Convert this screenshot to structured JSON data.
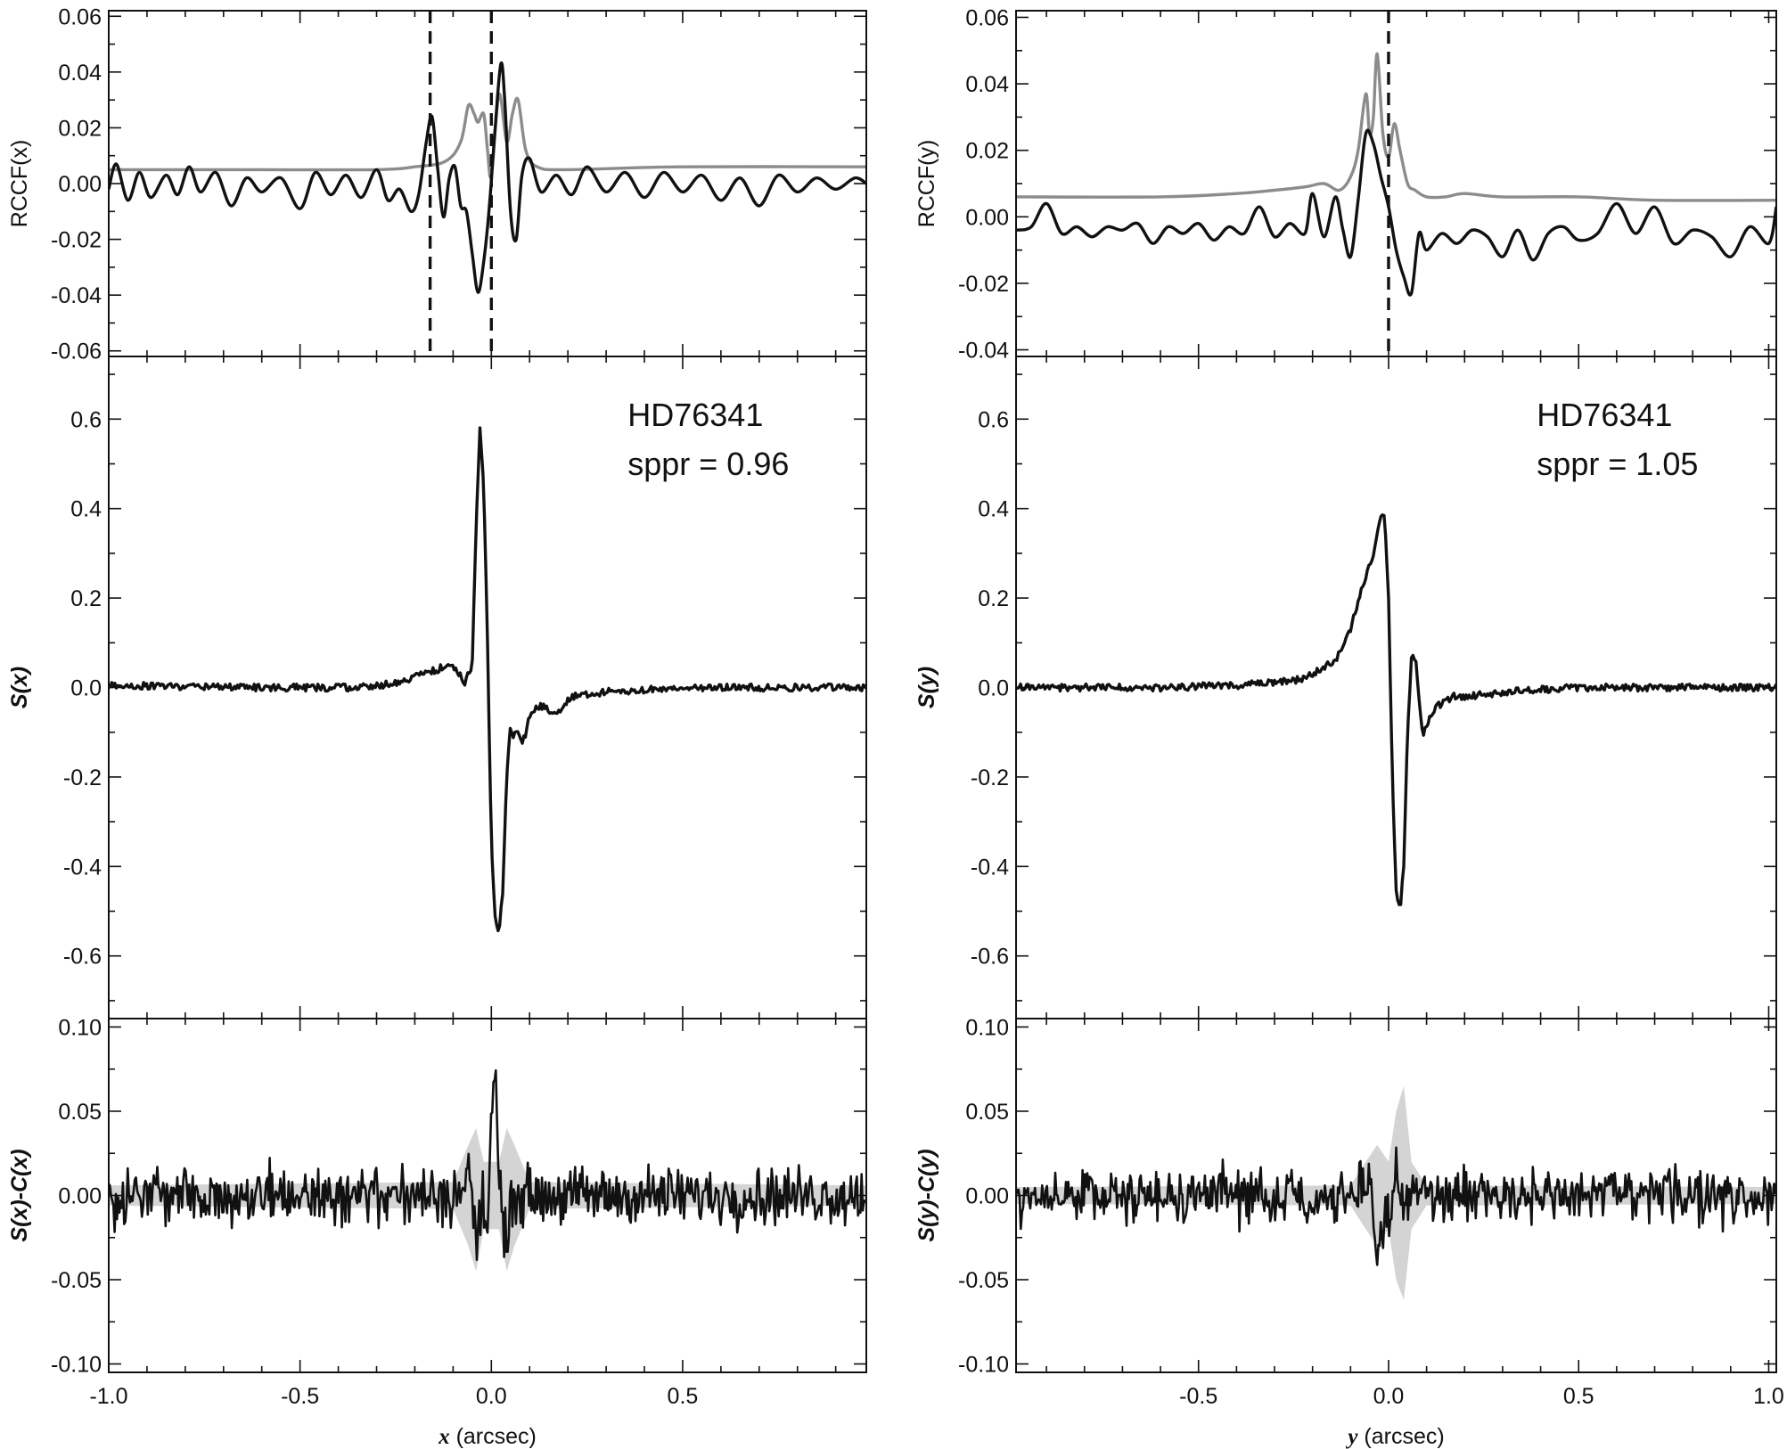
{
  "chart_data": [
    {
      "id": "left",
      "type": "line",
      "xlim": [
        -1.0,
        0.98
      ],
      "xticks": [
        -1.0,
        -0.5,
        0.0,
        0.5
      ],
      "xtick_labels": [
        "-1.0",
        "-0.5",
        "0.0",
        "0.5"
      ],
      "xlabel_var": "x",
      "xlabel_unit": " (arcsec)",
      "panels": [
        {
          "id": "rccf",
          "ylabel": "RCCF(x)",
          "ylim": [
            -0.062,
            0.062
          ],
          "yticks": [
            -0.06,
            -0.04,
            -0.02,
            0.0,
            0.02,
            0.04,
            0.06
          ],
          "ytick_labels": [
            "-0.06",
            "-0.04",
            "-0.02",
            "0.00",
            "0.02",
            "0.04",
            "0.06"
          ],
          "vlines": [
            -0.16,
            0.0
          ],
          "series": [
            {
              "color": "#8c8c8c",
              "x": [
                -1.0,
                -0.6,
                -0.3,
                -0.2,
                -0.12,
                -0.08,
                -0.06,
                -0.045,
                -0.035,
                -0.02,
                -0.01,
                0.0,
                0.02,
                0.04,
                0.055,
                0.07,
                0.09,
                0.12,
                0.2,
                0.5,
                0.98
              ],
              "y": [
                0.005,
                0.005,
                0.005,
                0.006,
                0.008,
                0.015,
                0.028,
                0.025,
                0.022,
                0.025,
                0.012,
                0.003,
                0.032,
                0.015,
                0.025,
                0.03,
                0.012,
                0.006,
                0.005,
                0.006,
                0.006
              ]
            },
            {
              "color": "#111111",
              "x": [
                -1.0,
                -0.98,
                -0.95,
                -0.92,
                -0.89,
                -0.85,
                -0.82,
                -0.79,
                -0.76,
                -0.72,
                -0.68,
                -0.64,
                -0.6,
                -0.55,
                -0.5,
                -0.46,
                -0.42,
                -0.38,
                -0.34,
                -0.3,
                -0.27,
                -0.24,
                -0.21,
                -0.19,
                -0.17,
                -0.155,
                -0.14,
                -0.125,
                -0.11,
                -0.095,
                -0.08,
                -0.065,
                -0.05,
                -0.035,
                -0.02,
                -0.005,
                0.01,
                0.025,
                0.035,
                0.05,
                0.065,
                0.08,
                0.1,
                0.13,
                0.17,
                0.21,
                0.25,
                0.3,
                0.35,
                0.4,
                0.45,
                0.5,
                0.55,
                0.6,
                0.65,
                0.7,
                0.75,
                0.8,
                0.85,
                0.9,
                0.95,
                0.98
              ],
              "y": [
                -0.002,
                0.007,
                -0.006,
                0.004,
                -0.005,
                0.003,
                -0.004,
                0.006,
                -0.003,
                0.004,
                -0.008,
                0.002,
                -0.003,
                0.002,
                -0.009,
                0.004,
                -0.004,
                0.003,
                -0.005,
                0.005,
                -0.006,
                -0.002,
                -0.01,
                -0.004,
                0.015,
                0.024,
                0.005,
                -0.012,
                0.002,
                0.006,
                -0.008,
                -0.01,
                -0.025,
                -0.039,
                -0.028,
                -0.008,
                0.02,
                0.043,
                0.03,
                -0.01,
                -0.02,
                0.003,
                0.009,
                -0.003,
                0.003,
                -0.004,
                0.006,
                -0.003,
                0.004,
                -0.005,
                0.004,
                -0.003,
                0.003,
                -0.006,
                0.002,
                -0.008,
                0.003,
                -0.003,
                0.002,
                -0.002,
                0.002,
                0.0
              ]
            }
          ]
        },
        {
          "id": "signal",
          "ylabel": "S(x)",
          "ylim": [
            -0.74,
            0.74
          ],
          "yticks": [
            -0.6,
            -0.4,
            -0.2,
            0.0,
            0.2,
            0.4,
            0.6
          ],
          "ytick_labels": [
            "-0.6",
            "-0.4",
            "-0.2",
            "0.0",
            "0.2",
            "0.4",
            "0.6"
          ],
          "annotation": [
            "HD76341",
            "sppr = 0.96"
          ],
          "series": [
            {
              "color": "#111111",
              "x": [
                -1.0,
                -0.6,
                -0.35,
                -0.25,
                -0.18,
                -0.14,
                -0.12,
                -0.09,
                -0.07,
                -0.05,
                -0.04,
                -0.03,
                -0.02,
                -0.01,
                0.0,
                0.01,
                0.02,
                0.03,
                0.04,
                0.05,
                0.06,
                0.07,
                0.08,
                0.09,
                0.1,
                0.13,
                0.17,
                0.21,
                0.3,
                0.5,
                0.98
              ],
              "y": [
                0.005,
                0.0,
                0.0,
                0.01,
                0.03,
                0.04,
                0.05,
                0.04,
                0.01,
                0.05,
                0.35,
                0.59,
                0.45,
                0.1,
                -0.35,
                -0.52,
                -0.55,
                -0.45,
                -0.2,
                -0.09,
                -0.11,
                -0.09,
                -0.13,
                -0.1,
                -0.06,
                -0.04,
                -0.06,
                -0.02,
                -0.01,
                0.0,
                0.0
              ]
            }
          ]
        },
        {
          "id": "residual",
          "ylabel": "S(x)-C(x)",
          "ylim": [
            -0.105,
            0.105
          ],
          "yticks": [
            -0.1,
            -0.05,
            0.0,
            0.05,
            0.1
          ],
          "ytick_labels": [
            "-0.10",
            "-0.05",
            "0.00",
            "0.05",
            "0.10"
          ],
          "series": [
            {
              "color": "#111111",
              "x": [
                -1.0,
                -0.08,
                -0.06,
                -0.04,
                -0.02,
                -0.01,
                0.0,
                0.01,
                0.02,
                0.035,
                0.05,
                0.07,
                0.98
              ],
              "y": [
                0.0,
                0.0,
                0.02,
                -0.03,
                0.0,
                -0.02,
                0.045,
                0.075,
                0.01,
                -0.03,
                0.0,
                0.0,
                0.0
              ],
              "noise": 0.012
            },
            {
              "color": "#d4d4d4",
              "band": true,
              "x": [
                -1.0,
                -0.1,
                -0.06,
                -0.04,
                -0.02,
                0.0,
                0.02,
                0.04,
                0.06,
                0.1,
                0.98
              ],
              "upper": [
                0.006,
                0.008,
                0.03,
                0.04,
                0.02,
                0.02,
                0.02,
                0.04,
                0.03,
                0.008,
                0.006
              ],
              "lower": [
                -0.006,
                -0.008,
                -0.03,
                -0.045,
                -0.02,
                -0.02,
                -0.02,
                -0.045,
                -0.03,
                -0.008,
                -0.006
              ]
            }
          ]
        }
      ]
    },
    {
      "id": "right",
      "type": "line",
      "xlim": [
        -0.98,
        1.02
      ],
      "xticks": [
        -0.5,
        0.0,
        0.5,
        1.0
      ],
      "xtick_labels": [
        "-0.5",
        "0.0",
        "0.5",
        "1.0"
      ],
      "xlabel_var": "y",
      "xlabel_unit": " (arcsec)",
      "panels": [
        {
          "id": "rccf",
          "ylabel": "RCCF(y)",
          "ylim": [
            -0.042,
            0.062
          ],
          "yticks": [
            -0.04,
            -0.02,
            0.0,
            0.02,
            0.04,
            0.06
          ],
          "ytick_labels": [
            "-0.04",
            "-0.02",
            "0.00",
            "0.02",
            "0.04",
            "0.06"
          ],
          "vlines": [
            0.0
          ],
          "series": [
            {
              "color": "#8c8c8c",
              "x": [
                -0.98,
                -0.6,
                -0.4,
                -0.3,
                -0.22,
                -0.17,
                -0.13,
                -0.1,
                -0.08,
                -0.06,
                -0.05,
                -0.04,
                -0.03,
                -0.015,
                0.0,
                0.015,
                0.03,
                0.05,
                0.07,
                0.1,
                0.15,
                0.2,
                0.3,
                0.5,
                0.7,
                1.02
              ],
              "y": [
                0.006,
                0.006,
                0.007,
                0.008,
                0.009,
                0.01,
                0.008,
                0.012,
                0.02,
                0.037,
                0.025,
                0.03,
                0.049,
                0.025,
                0.018,
                0.028,
                0.02,
                0.01,
                0.008,
                0.006,
                0.006,
                0.007,
                0.006,
                0.006,
                0.005,
                0.005
              ]
            },
            {
              "color": "#111111",
              "x": [
                -0.98,
                -0.94,
                -0.9,
                -0.86,
                -0.82,
                -0.78,
                -0.74,
                -0.7,
                -0.66,
                -0.62,
                -0.58,
                -0.54,
                -0.5,
                -0.46,
                -0.42,
                -0.38,
                -0.34,
                -0.3,
                -0.26,
                -0.22,
                -0.2,
                -0.17,
                -0.14,
                -0.12,
                -0.1,
                -0.08,
                -0.06,
                -0.04,
                -0.02,
                0.0,
                0.02,
                0.04,
                0.06,
                0.08,
                0.1,
                0.14,
                0.18,
                0.22,
                0.26,
                0.3,
                0.34,
                0.38,
                0.42,
                0.46,
                0.5,
                0.55,
                0.6,
                0.65,
                0.7,
                0.75,
                0.8,
                0.85,
                0.9,
                0.95,
                1.0,
                1.02
              ],
              "y": [
                -0.004,
                -0.003,
                0.004,
                -0.005,
                -0.003,
                -0.006,
                -0.003,
                -0.004,
                -0.002,
                -0.008,
                -0.003,
                -0.005,
                -0.002,
                -0.007,
                -0.003,
                -0.005,
                0.003,
                -0.006,
                -0.002,
                -0.005,
                0.007,
                -0.006,
                0.006,
                -0.004,
                -0.012,
                0.005,
                0.025,
                0.022,
                0.012,
                0.003,
                -0.01,
                -0.018,
                -0.023,
                -0.005,
                -0.01,
                -0.005,
                -0.008,
                -0.004,
                -0.006,
                -0.012,
                -0.004,
                -0.013,
                -0.005,
                -0.003,
                -0.007,
                -0.005,
                0.004,
                -0.005,
                0.003,
                -0.008,
                -0.004,
                -0.006,
                -0.012,
                -0.003,
                -0.008,
                0.003
              ]
            }
          ]
        },
        {
          "id": "signal",
          "ylabel": "S(y)",
          "ylim": [
            -0.74,
            0.74
          ],
          "yticks": [
            -0.6,
            -0.4,
            -0.2,
            0.0,
            0.2,
            0.4,
            0.6
          ],
          "ytick_labels": [
            "-0.6",
            "-0.4",
            "-0.2",
            "0.0",
            "0.2",
            "0.4",
            "0.6"
          ],
          "annotation": [
            "HD76341",
            "sppr = 1.05"
          ],
          "series": [
            {
              "color": "#111111",
              "x": [
                -0.98,
                -0.6,
                -0.4,
                -0.3,
                -0.22,
                -0.18,
                -0.14,
                -0.12,
                -0.1,
                -0.08,
                -0.06,
                -0.04,
                -0.02,
                -0.01,
                0.0,
                0.01,
                0.02,
                0.03,
                0.04,
                0.05,
                0.06,
                0.07,
                0.08,
                0.09,
                0.1,
                0.13,
                0.17,
                0.21,
                0.3,
                0.5,
                1.02
              ],
              "y": [
                0.0,
                0.0,
                0.005,
                0.01,
                0.02,
                0.04,
                0.06,
                0.09,
                0.13,
                0.19,
                0.25,
                0.3,
                0.39,
                0.38,
                0.2,
                -0.2,
                -0.45,
                -0.5,
                -0.4,
                -0.1,
                0.06,
                0.07,
                -0.02,
                -0.11,
                -0.08,
                -0.04,
                -0.02,
                -0.02,
                -0.01,
                0.0,
                0.0
              ]
            }
          ]
        },
        {
          "id": "residual",
          "ylabel": "S(y)-C(y)",
          "ylim": [
            -0.105,
            0.105
          ],
          "yticks": [
            -0.1,
            -0.05,
            0.0,
            0.05,
            0.1
          ],
          "ytick_labels": [
            "-0.10",
            "-0.05",
            "0.00",
            "0.05",
            "0.10"
          ],
          "series": [
            {
              "color": "#111111",
              "x": [
                -0.98,
                -0.1,
                -0.06,
                -0.03,
                0.0,
                0.02,
                0.04,
                0.06,
                0.1,
                1.02
              ],
              "y": [
                0.0,
                0.0,
                0.01,
                -0.025,
                -0.015,
                0.01,
                -0.01,
                0.005,
                0.0,
                0.0
              ],
              "noise": 0.011
            },
            {
              "color": "#d4d4d4",
              "band": true,
              "x": [
                -0.98,
                -0.1,
                -0.06,
                -0.03,
                0.0,
                0.02,
                0.04,
                0.06,
                0.1,
                1.02
              ],
              "upper": [
                0.005,
                0.006,
                0.02,
                0.03,
                0.02,
                0.05,
                0.065,
                0.02,
                0.006,
                0.005
              ],
              "lower": [
                -0.005,
                -0.006,
                -0.02,
                -0.03,
                -0.02,
                -0.05,
                -0.062,
                -0.02,
                -0.006,
                -0.005
              ]
            }
          ]
        }
      ]
    }
  ]
}
